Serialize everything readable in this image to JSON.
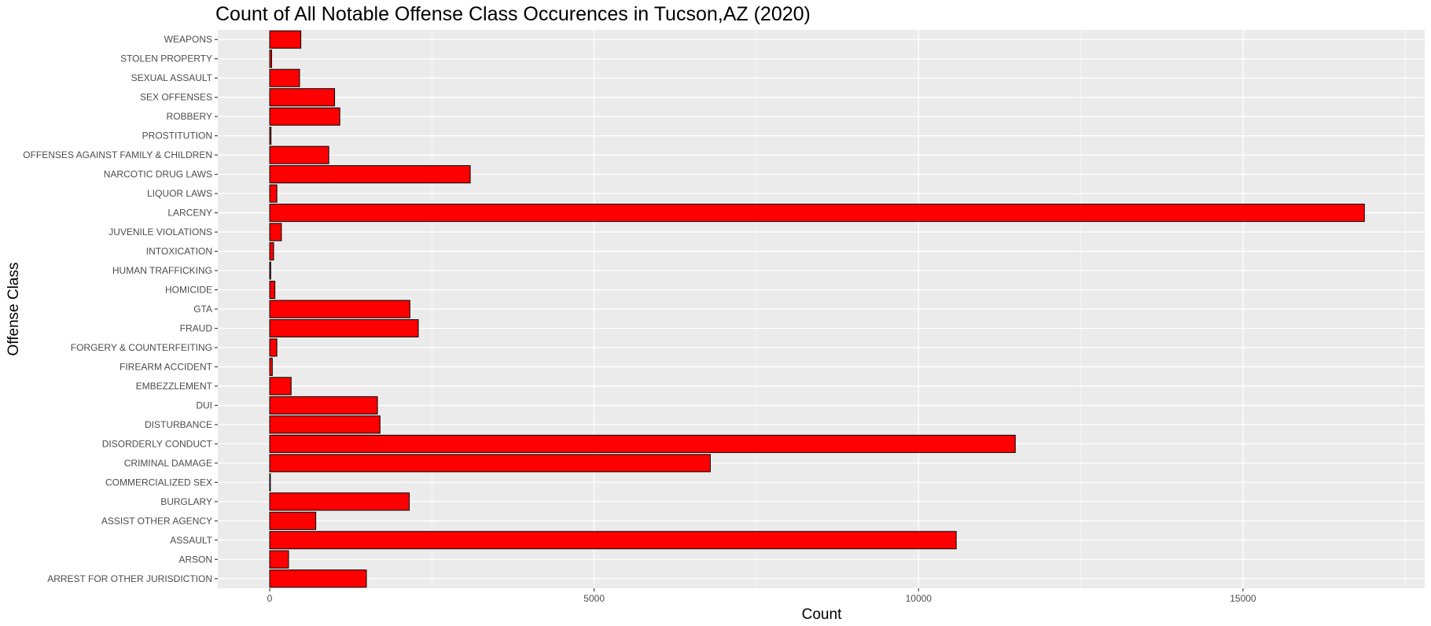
{
  "chart_data": {
    "type": "bar",
    "orientation": "horizontal",
    "title": "Count of All Notable Offense Class Occurences in Tucson,AZ (2020)",
    "xlabel": "Count",
    "ylabel": "Offense Class",
    "xlim": [
      -800,
      17800
    ],
    "xticks": [
      "0",
      "5000",
      "10000",
      "15000"
    ],
    "xtick_values": [
      0,
      5000,
      10000,
      15000
    ],
    "grid": true,
    "bar_fill": "#ff0000",
    "bar_stroke": "#000000",
    "panel_background": "#ebebeb",
    "categories": [
      "WEAPONS",
      "STOLEN PROPERTY",
      "SEXUAL ASSAULT",
      "SEX OFFENSES",
      "ROBBERY",
      "PROSTITUTION",
      "OFFENSES AGAINST FAMILY & CHILDREN",
      "NARCOTIC DRUG LAWS",
      "LIQUOR LAWS",
      "LARCENY",
      "JUVENILE VIOLATIONS",
      "INTOXICATION",
      "HUMAN TRAFFICKING",
      "HOMICIDE",
      "GTA",
      "FRAUD",
      "FORGERY & COUNTERFEITING",
      "FIREARM ACCIDENT",
      "EMBEZZLEMENT",
      "DUI",
      "DISTURBANCE",
      "DISORDERLY CONDUCT",
      "CRIMINAL DAMAGE",
      "COMMERCIALIZED SEX",
      "BURGLARY",
      "ASSIST OTHER AGENCY",
      "ASSAULT",
      "ARSON",
      "ARREST FOR OTHER JURISDICTION"
    ],
    "values": [
      480,
      30,
      460,
      1000,
      1080,
      20,
      910,
      3090,
      110,
      16870,
      180,
      60,
      15,
      80,
      2160,
      2290,
      110,
      40,
      330,
      1660,
      1700,
      11490,
      6790,
      10,
      2150,
      710,
      10580,
      290,
      1490
    ]
  }
}
